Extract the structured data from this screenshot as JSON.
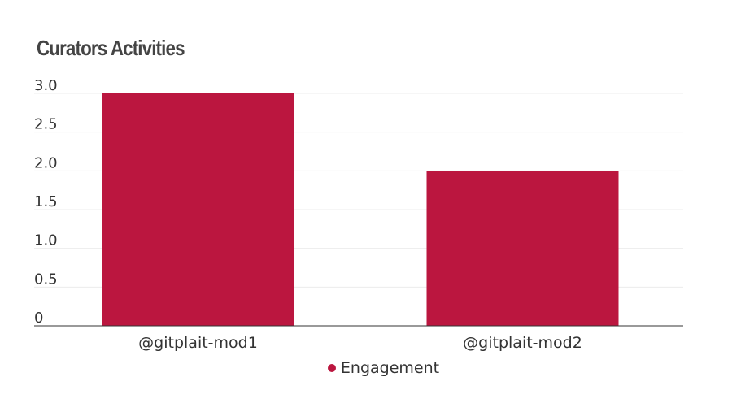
{
  "chart_data": {
    "type": "bar",
    "title": "Curators Activities",
    "categories": [
      "@gitplait-mod1",
      "@gitplait-mod2"
    ],
    "series": [
      {
        "name": "Engagement",
        "values": [
          3,
          2
        ],
        "color": "#bb163f"
      }
    ],
    "ylim": [
      0,
      3
    ],
    "yticks": [
      0,
      0.5,
      1.0,
      1.5,
      2.0,
      2.5,
      3.0
    ],
    "ytick_labels": [
      "0",
      "0.5",
      "1.0",
      "1.5",
      "2.0",
      "2.5",
      "3.0"
    ],
    "xlabel": "",
    "ylabel": "",
    "grid": true,
    "legend_position": "bottom-center"
  }
}
